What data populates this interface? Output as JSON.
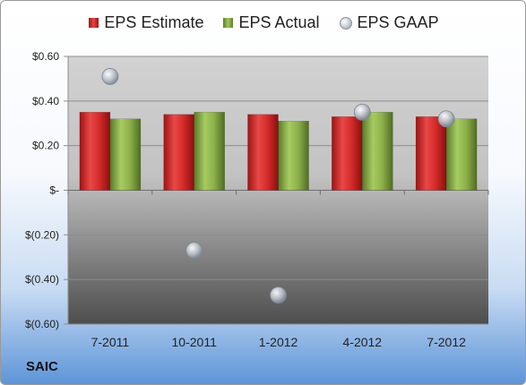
{
  "chart_data": {
    "type": "bar",
    "categories": [
      "7-2011",
      "10-2011",
      "1-2012",
      "4-2012",
      "7-2012"
    ],
    "series": [
      {
        "name": "EPS Estimate",
        "kind": "bar",
        "color": "#d42a2a",
        "values": [
          0.35,
          0.34,
          0.34,
          0.33,
          0.33
        ]
      },
      {
        "name": "EPS Actual",
        "kind": "bar",
        "color": "#8db04a",
        "values": [
          0.32,
          0.35,
          0.31,
          0.35,
          0.32
        ]
      },
      {
        "name": "EPS GAAP",
        "kind": "scatter",
        "color": "#b9c0cb",
        "values": [
          0.51,
          -0.27,
          -0.47,
          0.35,
          0.32
        ]
      }
    ],
    "ylim": [
      -0.6,
      0.6
    ],
    "yticks": [
      0.6,
      0.4,
      0.2,
      0,
      -0.2,
      -0.4,
      -0.6
    ],
    "ytick_labels": [
      "$0.60",
      "$0.40",
      "$0.20",
      "$-",
      "$(0.20)",
      "$(0.40)",
      "$(0.60)"
    ],
    "grid": true,
    "legend_position": "top"
  },
  "company_label": "SAIC"
}
